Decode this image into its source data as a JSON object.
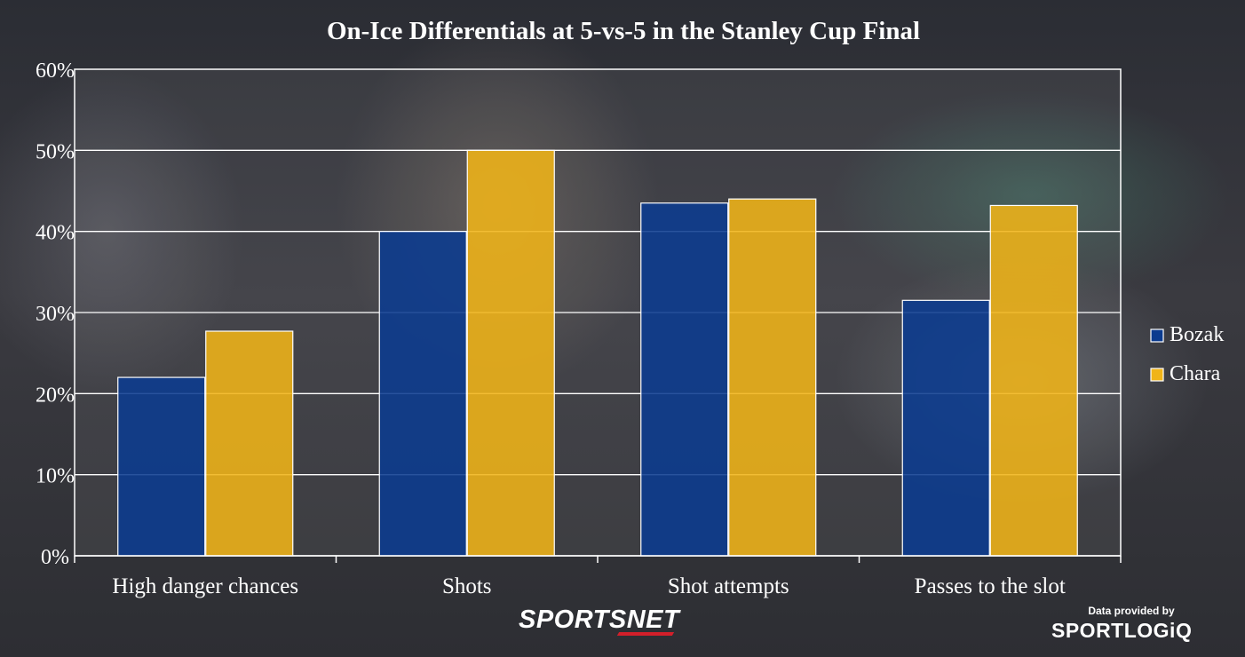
{
  "chart_data": {
    "type": "bar",
    "title": "On-Ice Differentials at 5-vs-5 in the Stanley Cup Final",
    "xlabel": "",
    "ylabel": "",
    "categories": [
      "High danger chances",
      "Shots",
      "Shot attempts",
      "Passes to the slot"
    ],
    "series": [
      {
        "name": "Bozak",
        "values": [
          22,
          40,
          43.5,
          31.5
        ],
        "color": "#0b3b8f"
      },
      {
        "name": "Chara",
        "values": [
          27.7,
          50,
          44,
          43.2
        ],
        "color": "#f0b418"
      }
    ],
    "ylim": [
      0,
      60
    ],
    "yticks": [
      "0%",
      "10%",
      "20%",
      "30%",
      "40%",
      "50%",
      "60%"
    ],
    "grid": true,
    "legend": "right"
  },
  "branding": {
    "logo": "SPORTSNET",
    "credit_line": "Data provided by",
    "partner_logo": "SPORTLOGiQ"
  }
}
